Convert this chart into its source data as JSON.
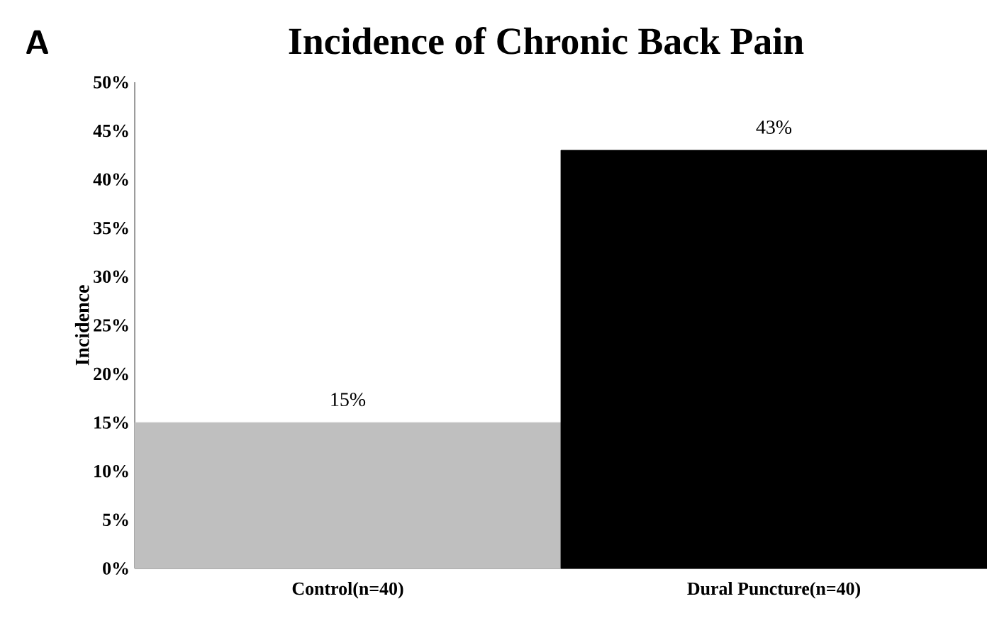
{
  "chart_data": {
    "type": "bar",
    "title": "Incidence of Chronic Back Pain",
    "annotations": [
      "A"
    ],
    "ylabel": "Incidence",
    "categories": [
      "Control(n=40)",
      "Dural Puncture(n=40)"
    ],
    "values": [
      15,
      43
    ],
    "colors": [
      "#bfbfbf",
      "#000000"
    ],
    "value_labels": [
      "15%",
      "43%"
    ],
    "ylim": [
      0,
      50
    ],
    "yticks": [
      {
        "value": 0,
        "label": "0%"
      },
      {
        "value": 5,
        "label": "5%"
      },
      {
        "value": 10,
        "label": "10%"
      },
      {
        "value": 15,
        "label": "15%"
      },
      {
        "value": 20,
        "label": "20%"
      },
      {
        "value": 25,
        "label": "25%"
      },
      {
        "value": 30,
        "label": "30%"
      },
      {
        "value": 35,
        "label": "35%"
      },
      {
        "value": 40,
        "label": "40%"
      },
      {
        "value": 45,
        "label": "45%"
      },
      {
        "value": 50,
        "label": "50%"
      }
    ],
    "grid": false
  }
}
